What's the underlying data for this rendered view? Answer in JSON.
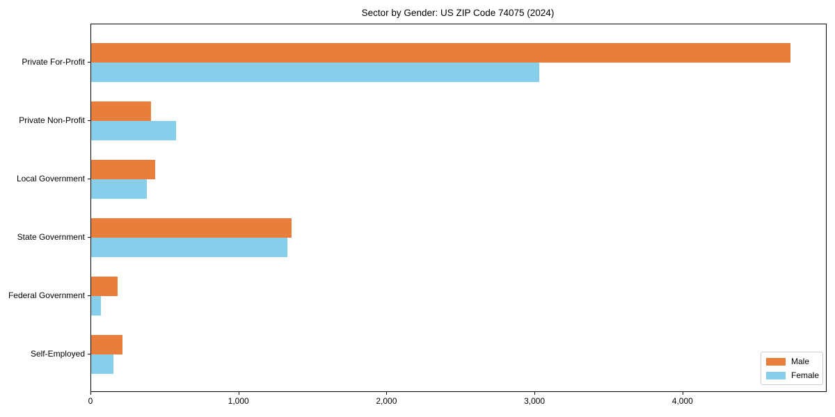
{
  "chart_data": {
    "type": "bar",
    "orientation": "horizontal",
    "title": "Sector by Gender: US ZIP Code 74075 (2024)",
    "xlabel": "",
    "ylabel": "",
    "categories": [
      "Private For-Profit",
      "Private Non-Profit",
      "Local Government",
      "State Government",
      "Federal Government",
      "Self-Employed"
    ],
    "series": [
      {
        "name": "Male",
        "color": "#e87d3c",
        "values": [
          4725,
          405,
          430,
          1355,
          180,
          210
        ]
      },
      {
        "name": "Female",
        "color": "#87ceeb",
        "values": [
          3030,
          575,
          375,
          1325,
          65,
          150
        ]
      }
    ],
    "xlim": [
      0,
      4965
    ],
    "xticks": [
      {
        "value": 0,
        "label": "0"
      },
      {
        "value": 1000,
        "label": "1,000"
      },
      {
        "value": 2000,
        "label": "2,000"
      },
      {
        "value": 3000,
        "label": "3,000"
      },
      {
        "value": 4000,
        "label": "4,000"
      }
    ],
    "grid": false,
    "legend": {
      "position": "lower right",
      "entries": [
        "Male",
        "Female"
      ]
    }
  }
}
